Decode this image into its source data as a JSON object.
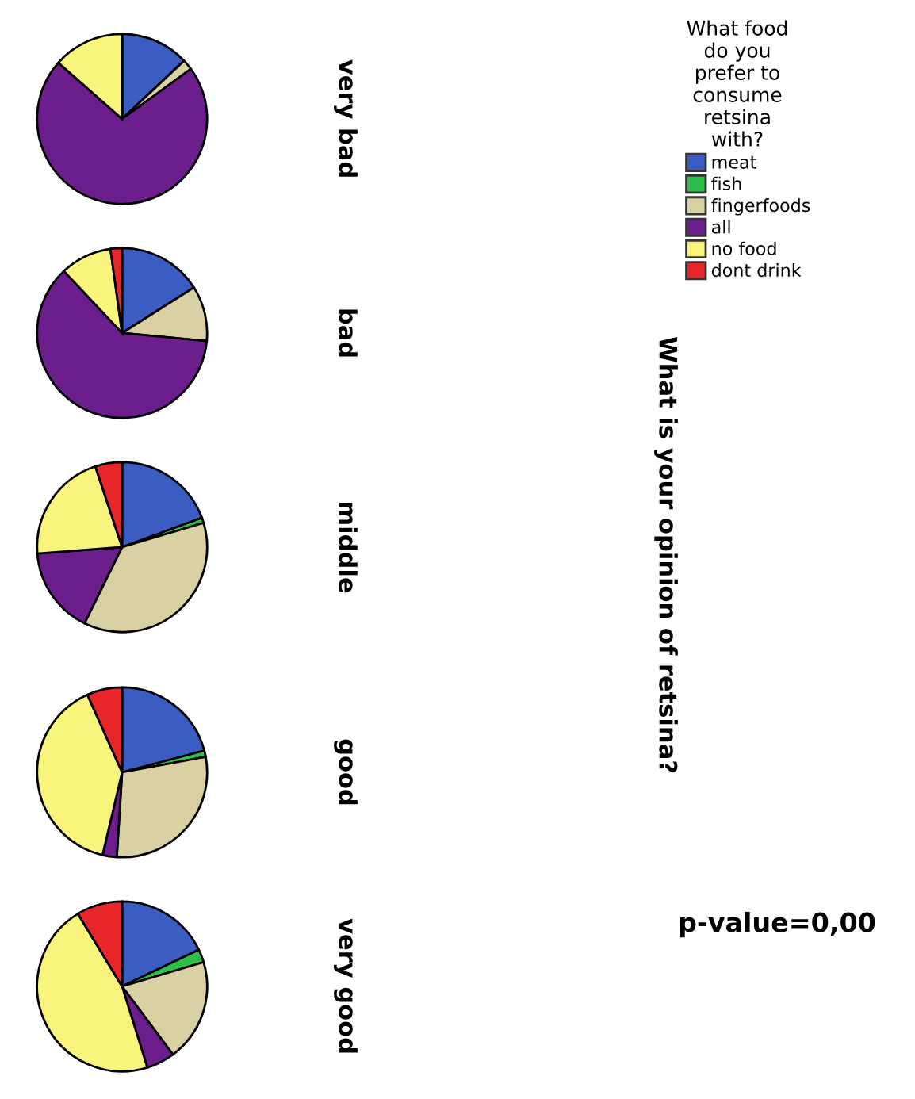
{
  "chart_data": [
    {
      "type": "pie",
      "ylabel": "very bad",
      "categories": [
        "meat",
        "fish",
        "fingerfoods",
        "all",
        "no food",
        "dont drink"
      ],
      "values": [
        13,
        0,
        2,
        71.5,
        13.5,
        0
      ],
      "colors": [
        "#3b5cc0",
        "#2fbf4a",
        "#d9d0a3",
        "#6c1f8c",
        "#f9f57c",
        "#e8262a"
      ],
      "legend": "right",
      "legend_title": "What food\ndo you\nprefer to\nconsume\nretsina\nwith?",
      "annotations": [
        "What is your opinion of retsina?",
        "p-value=0,00"
      ]
    },
    {
      "type": "pie",
      "ylabel": "bad",
      "values": [
        16,
        0,
        10.5,
        61.5,
        9.8,
        2.2
      ],
      "colors": [
        "#3b5cc0",
        "#2fbf4a",
        "#d9d0a3",
        "#6c1f8c",
        "#f9f57c",
        "#e8262a"
      ]
    },
    {
      "type": "pie",
      "ylabel": "middle",
      "values": [
        19.4,
        1,
        36.9,
        16.5,
        21.1,
        5.1
      ],
      "colors": [
        "#3b5cc0",
        "#2fbf4a",
        "#d9d0a3",
        "#6c1f8c",
        "#f9f57c",
        "#e8262a"
      ]
    },
    {
      "type": "pie",
      "ylabel": "good",
      "values": [
        20.9,
        1.2,
        28.9,
        2.7,
        39.6,
        6.7
      ],
      "colors": [
        "#3b5cc0",
        "#2fbf4a",
        "#d9d0a3",
        "#6c1f8c",
        "#f9f57c",
        "#e8262a"
      ]
    },
    {
      "type": "pie",
      "ylabel": "very good",
      "values": [
        17.9,
        2.5,
        19.4,
        5.4,
        46.1,
        8.7
      ],
      "colors": [
        "#3b5cc0",
        "#2fbf4a",
        "#d9d0a3",
        "#6c1f8c",
        "#f9f57c",
        "#e8262a"
      ]
    }
  ]
}
